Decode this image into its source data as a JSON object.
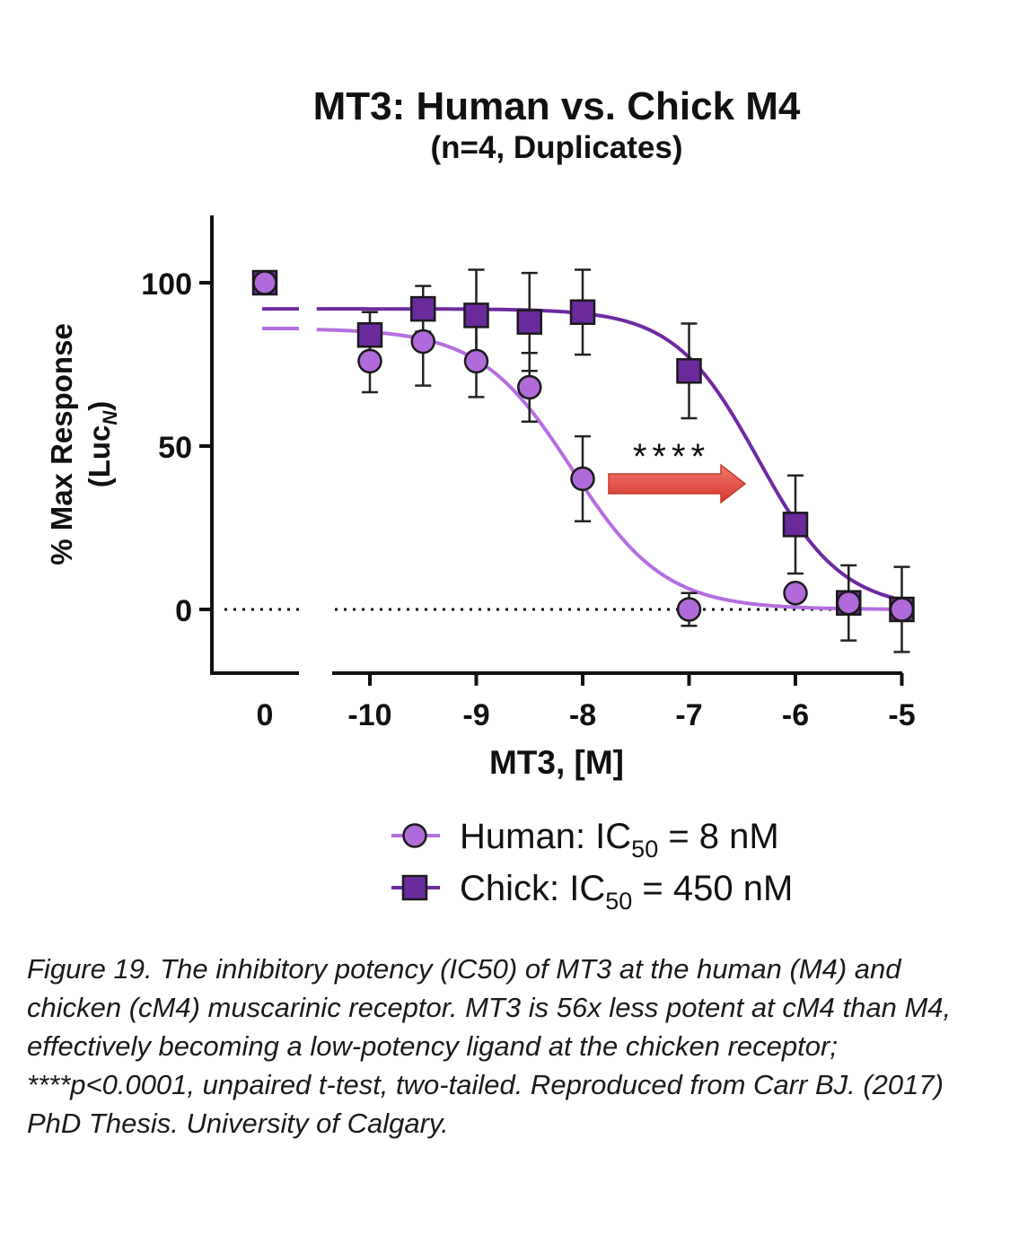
{
  "chart_data": {
    "type": "scatter",
    "title": "MT3: Human vs. Chick M4",
    "subtitle": "(n=4, Duplicates)",
    "xlabel": "MT3, [M]",
    "ylabel_line1": "% Max Response",
    "ylabel_line2_base": "(Luc",
    "ylabel_line2_sub": "N",
    "ylabel_line2_end": ")",
    "x_scale": "log10",
    "x_ticks": [
      {
        "value": 0,
        "label": "0"
      },
      {
        "value": -10,
        "label": "-10"
      },
      {
        "value": -9,
        "label": "-9"
      },
      {
        "value": -8,
        "label": "-8"
      },
      {
        "value": -7,
        "label": "-7"
      },
      {
        "value": -6,
        "label": "-6"
      },
      {
        "value": -5,
        "label": "-5"
      }
    ],
    "y_ticks": [
      {
        "value": 0,
        "label": "0"
      },
      {
        "value": 50,
        "label": "50"
      },
      {
        "value": 100,
        "label": "100"
      }
    ],
    "ylim": [
      -20,
      120
    ],
    "xlim": [
      -10.5,
      -5
    ],
    "annotation": "****",
    "series": [
      {
        "name": "Human",
        "legend_prefix": "Human: IC",
        "legend_sub": "50",
        "legend_suffix": " = 8 nM",
        "marker": "circle",
        "color": "#b06ad9",
        "line_color": "#b46ee0",
        "fit": {
          "top": 86,
          "bottom": 0,
          "logIC50": -8.1,
          "hill": 1.0
        },
        "control": {
          "label": "0",
          "y": 100
        },
        "points": [
          {
            "x": -10,
            "y": 76,
            "err": 9.5
          },
          {
            "x": -9.5,
            "y": 82,
            "err": 13.5
          },
          {
            "x": -9,
            "y": 76,
            "err": 11
          },
          {
            "x": -8.5,
            "y": 68,
            "err": 10.5
          },
          {
            "x": -8,
            "y": 40,
            "err": 13
          },
          {
            "x": -7,
            "y": 0,
            "err": 5
          },
          {
            "x": -6,
            "y": 5,
            "err": 0
          },
          {
            "x": -5.5,
            "y": 2,
            "err": 0
          },
          {
            "x": -5,
            "y": 0,
            "err": 0
          }
        ]
      },
      {
        "name": "Chick",
        "legend_prefix": "Chick: IC",
        "legend_sub": "50",
        "legend_suffix": " = 450 nM",
        "marker": "square",
        "color": "#6a2a9c",
        "line_color": "#6e2ba0",
        "fit": {
          "top": 92,
          "bottom": 0,
          "logIC50": -6.35,
          "hill": 1.1
        },
        "control": {
          "label": "0",
          "y": 100
        },
        "points": [
          {
            "x": -10,
            "y": 84,
            "err": 7
          },
          {
            "x": -9.5,
            "y": 92,
            "err": 7
          },
          {
            "x": -9,
            "y": 90,
            "err": 14
          },
          {
            "x": -8.5,
            "y": 88,
            "err": 15
          },
          {
            "x": -8,
            "y": 91,
            "err": 13
          },
          {
            "x": -7,
            "y": 73,
            "err": 14.5
          },
          {
            "x": -6,
            "y": 26,
            "err": 15
          },
          {
            "x": -5.5,
            "y": 2,
            "err": 11.5
          },
          {
            "x": -5,
            "y": 0,
            "err": 13
          }
        ]
      }
    ]
  },
  "caption": "Figure 19. The inhibitory potency (IC50) of MT3 at the human (M4) and chicken (cM4) muscarinic receptor. MT3 is 56x less potent at cM4 than M4, effectively becoming a low-potency ligand at the chicken receptor; ****p<0.0001, unpaired t-test, two-tailed. Reproduced from Carr BJ. (2017) PhD Thesis. University of Calgary.",
  "colors": {
    "arrow": "#e0443a",
    "axis": "#111111"
  }
}
